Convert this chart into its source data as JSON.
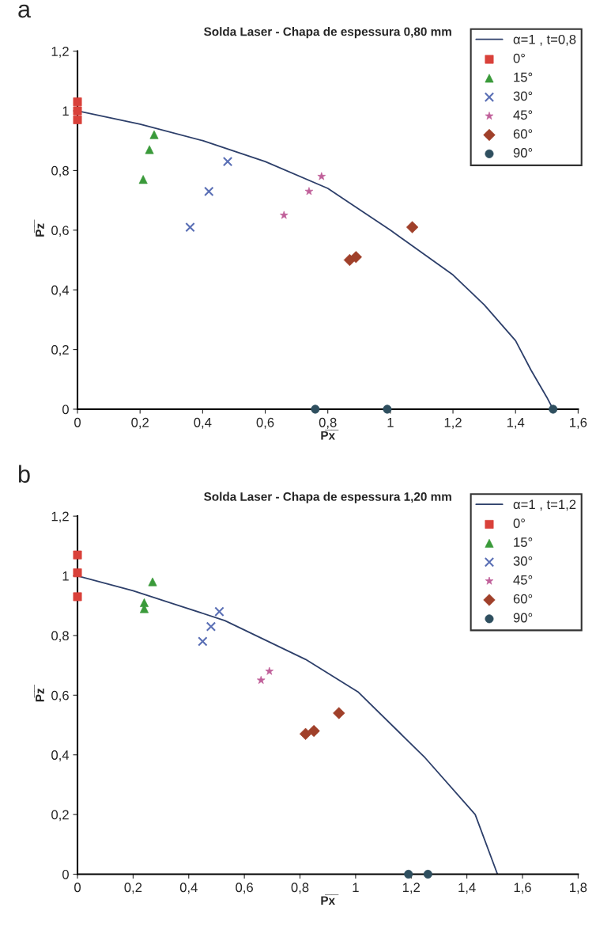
{
  "chart_data": [
    {
      "type": "scatter",
      "title": "Solda Laser - Chapa de espessura 0,80 mm",
      "xlabel": "P̅x̅",
      "ylabel": "P̅z̅",
      "annotations": [
        "a"
      ],
      "xlim": [
        0,
        1.6
      ],
      "ylim": [
        0,
        1.2
      ],
      "xticks": [
        0,
        {
          "value": 0.2,
          "label": "0,2"
        },
        {
          "value": 0.4,
          "label": "0,4"
        },
        {
          "value": 0.6,
          "label": "0,6"
        },
        {
          "value": 0.8,
          "label": "0,8"
        },
        1,
        {
          "value": 1.2,
          "label": "1,2"
        },
        {
          "value": 1.4,
          "label": "1,4"
        },
        {
          "value": 1.6,
          "label": "1,6"
        }
      ],
      "yticks": [
        0,
        {
          "value": 0.2,
          "label": "0,2"
        },
        {
          "value": 0.4,
          "label": "0,4"
        },
        {
          "value": 0.6,
          "label": "0,6"
        },
        {
          "value": 0.8,
          "label": "0,8"
        },
        1,
        {
          "value": 1.2,
          "label": "1,2"
        }
      ],
      "legend": "top right",
      "grid": false,
      "series": [
        {
          "name": "α=1 , t=0,8",
          "type": "line",
          "color": "#2d3f6a",
          "marker": "none",
          "x": [
            0,
            0.2,
            0.4,
            0.6,
            0.8,
            1.0,
            1.2,
            1.3,
            1.4,
            1.45,
            1.5,
            1.52
          ],
          "values": [
            1.0,
            0.955,
            0.9,
            0.83,
            0.74,
            0.6,
            0.45,
            0.35,
            0.23,
            0.13,
            0.04,
            0
          ]
        },
        {
          "name": "0°",
          "color": "#d9413a",
          "marker": "square",
          "x": [
            0,
            0,
            0
          ],
          "values": [
            1.03,
            1.0,
            0.97
          ]
        },
        {
          "name": "15°",
          "color": "#3a9a3a",
          "marker": "triangle",
          "x": [
            0.21,
            0.23,
            0.245
          ],
          "values": [
            0.77,
            0.87,
            0.92
          ]
        },
        {
          "name": "30°",
          "color": "#5a6fb5",
          "marker": "cross",
          "x": [
            0.36,
            0.42,
            0.48
          ],
          "values": [
            0.61,
            0.73,
            0.83
          ]
        },
        {
          "name": "45°",
          "color": "#c0609a",
          "marker": "star",
          "x": [
            0.66,
            0.74,
            0.78
          ],
          "values": [
            0.65,
            0.73,
            0.78
          ]
        },
        {
          "name": "60°",
          "color": "#a0402a",
          "marker": "diamond",
          "x": [
            0.87,
            0.89,
            1.07
          ],
          "values": [
            0.5,
            0.51,
            0.61
          ]
        },
        {
          "name": "90°",
          "color": "#2f4f5f",
          "marker": "circle",
          "x": [
            0.76,
            0.99,
            1.52
          ],
          "values": [
            0,
            0,
            0
          ]
        }
      ]
    },
    {
      "type": "scatter",
      "title": "Solda Laser - Chapa de espessura 1,20 mm",
      "xlabel": "P̅x̅",
      "ylabel": "P̅z̅",
      "annotations": [
        "b"
      ],
      "xlim": [
        0,
        1.8
      ],
      "ylim": [
        0,
        1.2
      ],
      "xticks": [
        0,
        {
          "value": 0.2,
          "label": "0,2"
        },
        {
          "value": 0.4,
          "label": "0,4"
        },
        {
          "value": 0.6,
          "label": "0,6"
        },
        {
          "value": 0.8,
          "label": "0,8"
        },
        1,
        {
          "value": 1.2,
          "label": "1,2"
        },
        {
          "value": 1.4,
          "label": "1,4"
        },
        {
          "value": 1.6,
          "label": "1,6"
        },
        {
          "value": 1.8,
          "label": "1,8"
        }
      ],
      "yticks": [
        0,
        {
          "value": 0.2,
          "label": "0,2"
        },
        {
          "value": 0.4,
          "label": "0,4"
        },
        {
          "value": 0.6,
          "label": "0,6"
        },
        {
          "value": 0.8,
          "label": "0,8"
        },
        1,
        {
          "value": 1.2,
          "label": "1,2"
        }
      ],
      "legend": "top right",
      "grid": false,
      "series": [
        {
          "name": "α=1 , t=1,2",
          "type": "line",
          "color": "#2d3f6a",
          "marker": "none",
          "x": [
            0,
            0.2,
            0.53,
            0.82,
            1.01,
            1.25,
            1.43,
            1.51
          ],
          "values": [
            1.0,
            0.95,
            0.85,
            0.72,
            0.61,
            0.39,
            0.2,
            0
          ]
        },
        {
          "name": "0°",
          "color": "#d9413a",
          "marker": "square",
          "x": [
            0,
            0,
            0
          ],
          "values": [
            1.07,
            1.01,
            0.93
          ]
        },
        {
          "name": "15°",
          "color": "#3a9a3a",
          "marker": "triangle",
          "x": [
            0.24,
            0.24,
            0.27
          ],
          "values": [
            0.89,
            0.91,
            0.98
          ]
        },
        {
          "name": "30°",
          "color": "#5a6fb5",
          "marker": "cross",
          "x": [
            0.45,
            0.48,
            0.51
          ],
          "values": [
            0.78,
            0.83,
            0.88
          ]
        },
        {
          "name": "45°",
          "color": "#c0609a",
          "marker": "star",
          "x": [
            0.66,
            0.69
          ],
          "values": [
            0.65,
            0.68
          ]
        },
        {
          "name": "60°",
          "color": "#a0402a",
          "marker": "diamond",
          "x": [
            0.82,
            0.85,
            0.94
          ],
          "values": [
            0.47,
            0.48,
            0.54
          ]
        },
        {
          "name": "90°",
          "color": "#2f4f5f",
          "marker": "circle",
          "x": [
            1.19,
            1.26
          ],
          "values": [
            0,
            0
          ]
        }
      ]
    }
  ]
}
